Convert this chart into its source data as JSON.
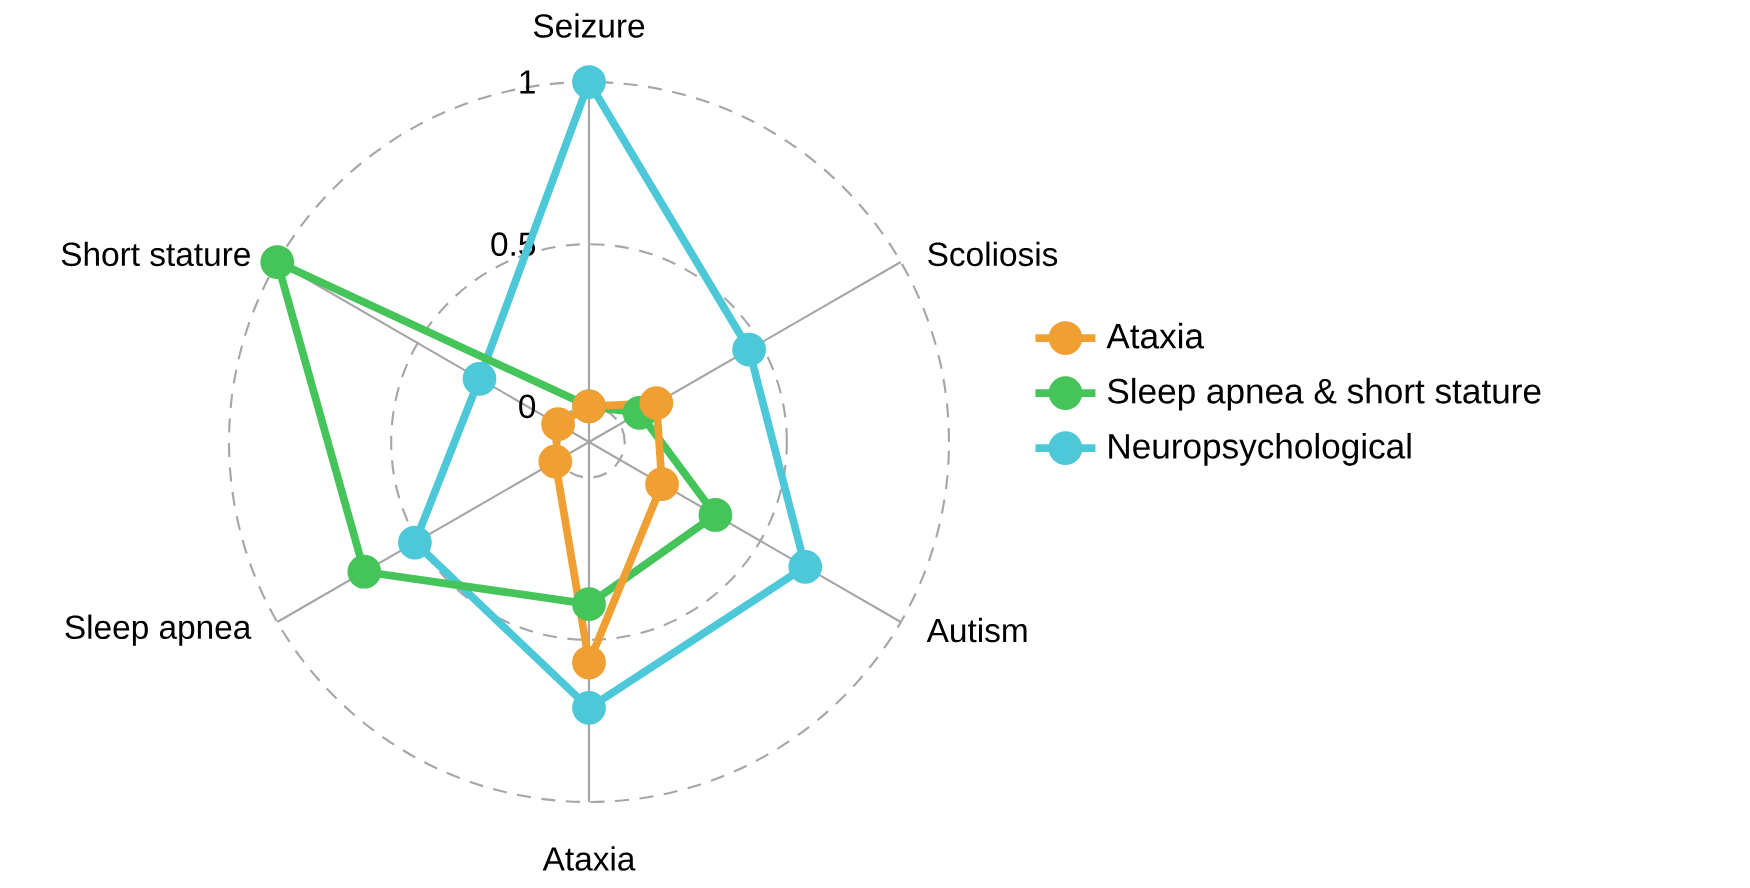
{
  "chart_data": {
    "type": "radar",
    "categories": [
      "Seizure",
      "Scoliosis",
      "Autism",
      "Ataxia",
      "Sleep apnea",
      "Short stature"
    ],
    "series": [
      {
        "name": "Ataxia",
        "color": "#f0a033",
        "values": [
          0,
          0.13,
          0.15,
          0.57,
          0.01,
          0
        ]
      },
      {
        "name": "Sleep apnea & short stature",
        "color": "#45c45a",
        "values": [
          0,
          0.07,
          0.34,
          0.39,
          0.69,
          1
        ]
      },
      {
        "name": "Neuropsychological",
        "color": "#4dc8d8",
        "values": [
          1,
          0.46,
          0.66,
          0.71,
          0.51,
          0.28
        ]
      }
    ],
    "ylim": [
      -0.11,
      1
    ],
    "yticks": [
      0,
      0.5,
      1
    ],
    "grid": true,
    "legend": "right",
    "marker": "circle",
    "line_style": "solid"
  }
}
